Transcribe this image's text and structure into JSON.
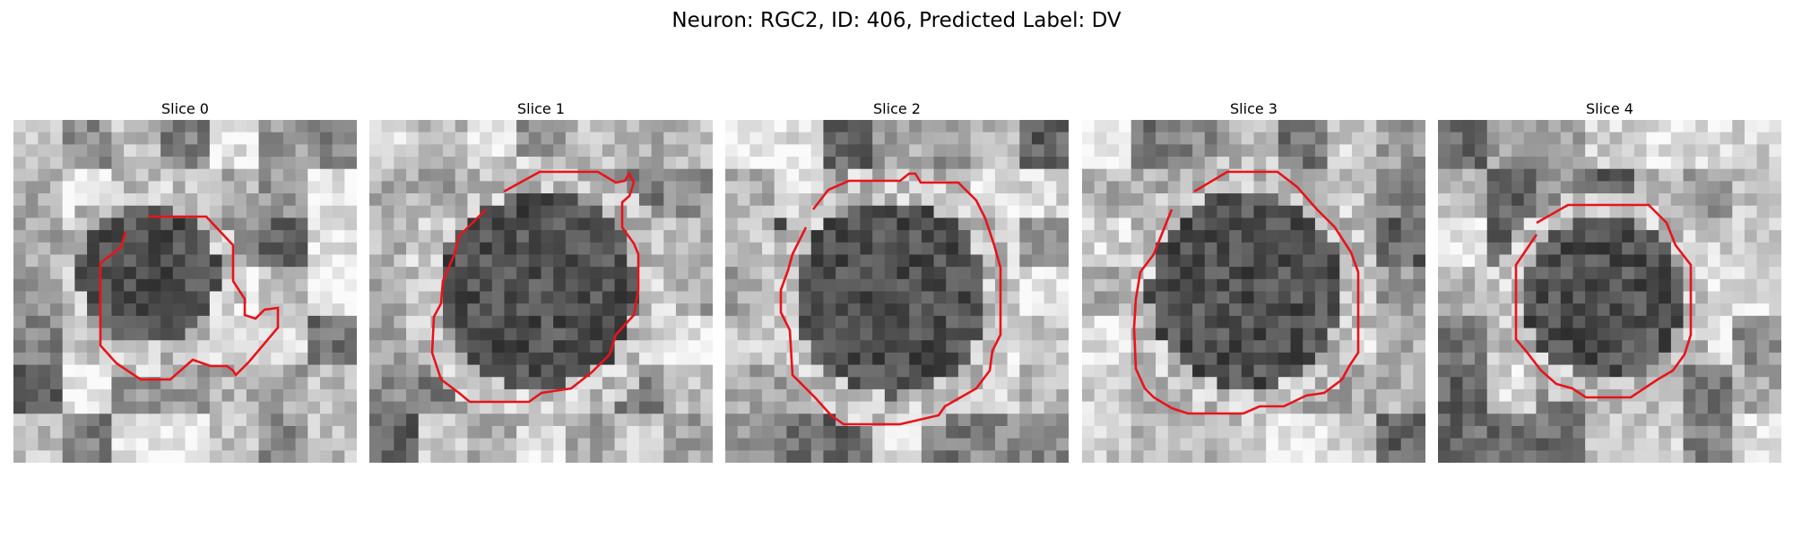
{
  "figure": {
    "title": "Neuron: RGC2, ID: 406, Predicted Label: DV"
  },
  "panels": [
    {
      "title": "Slice 0",
      "contour_color": "#e8141a"
    },
    {
      "title": "Slice 1",
      "contour_color": "#e8141a"
    },
    {
      "title": "Slice 2",
      "contour_color": "#e8141a"
    },
    {
      "title": "Slice 3",
      "contour_color": "#e8141a"
    },
    {
      "title": "Slice 4",
      "contour_color": "#e8141a"
    }
  ],
  "colormap": "gray"
}
